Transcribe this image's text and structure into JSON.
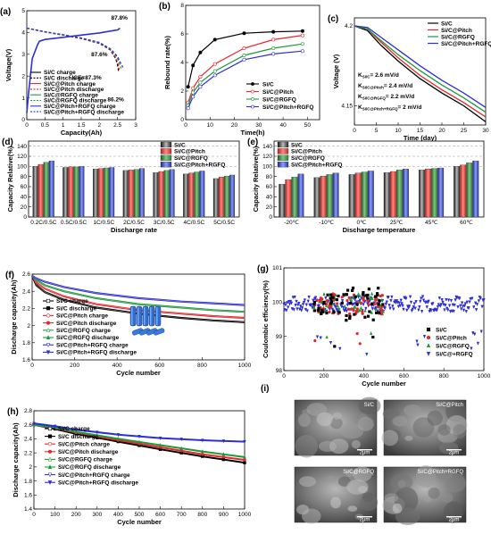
{
  "colors": {
    "SiC": "#000000",
    "Pitch": "#e8252a",
    "RGFQ": "#1e9a3a",
    "PitchRGFQ": "#2d2fd6"
  },
  "chart_data": [
    {
      "id": "a",
      "panel_label": "(a)",
      "type": "line",
      "xlabel": "Capacity(Ah)",
      "ylabel": "Voltage(V)",
      "xlim": [
        0,
        3
      ],
      "ylim": [
        0,
        5
      ],
      "xticks": [
        0,
        0.5,
        1,
        1.5,
        2,
        2.5,
        3
      ],
      "yticks": [
        0,
        1,
        2,
        3,
        4,
        5
      ],
      "annotations": [
        {
          "text": "87.8%",
          "x": 2.55,
          "y": 4.6
        },
        {
          "text": "87.6%",
          "x": 2.0,
          "y": 2.9
        },
        {
          "text": "ICE=87.3%",
          "x": 1.65,
          "y": 1.85
        },
        {
          "text": "86.2%",
          "x": 2.45,
          "y": 0.85
        }
      ],
      "legend": [
        "Si/C charge",
        "Si/C discharge",
        "Si/C@Pitch charge",
        "Si/C@Pitch discharge",
        "Si/C@RGFQ charge",
        "Si/C@RGFQ discharge",
        "Si/C@Pitch+RGFQ charge",
        "Si/C@Pitch+RGFQ discharge"
      ],
      "series": [
        {
          "key": "PitchRGFQ",
          "name": "Si/C@Pitch+RGFQ charge",
          "x": [
            0,
            0.05,
            0.15,
            0.3,
            0.35,
            0.5,
            1.0,
            1.5,
            2.0,
            2.5,
            2.57
          ],
          "y": [
            0.3,
            1.2,
            2.8,
            3.45,
            3.6,
            3.68,
            3.78,
            3.88,
            3.98,
            4.12,
            4.2
          ]
        },
        {
          "key": "SiC",
          "name": "Si/C discharge",
          "x": [
            0,
            0.5,
            1.0,
            1.5,
            2.0,
            2.3,
            2.45,
            2.5,
            2.53
          ],
          "y": [
            4.2,
            4.02,
            3.88,
            3.72,
            3.5,
            3.2,
            2.8,
            2.5,
            2.2
          ]
        },
        {
          "key": "Pitch",
          "name": "Si/C@Pitch discharge",
          "x": [
            0,
            0.5,
            1.0,
            1.5,
            2.0,
            2.3,
            2.45,
            2.52,
            2.55
          ],
          "y": [
            4.2,
            4.03,
            3.89,
            3.73,
            3.52,
            3.22,
            2.85,
            2.55,
            2.3
          ]
        },
        {
          "key": "RGFQ",
          "name": "Si/C@RGFQ discharge",
          "x": [
            0,
            0.5,
            1.0,
            1.5,
            2.0,
            2.3,
            2.48,
            2.55,
            2.6
          ],
          "y": [
            4.2,
            4.03,
            3.89,
            3.74,
            3.53,
            3.24,
            2.88,
            2.6,
            2.35
          ]
        },
        {
          "key": "PitchRGFQ",
          "name": "Si/C@Pitch+RGFQ discharge",
          "x": [
            0,
            0.5,
            1.0,
            1.5,
            2.0,
            2.3,
            2.5,
            2.58,
            2.65
          ],
          "y": [
            4.2,
            4.04,
            3.9,
            3.75,
            3.55,
            3.26,
            2.9,
            2.62,
            2.4
          ]
        }
      ]
    },
    {
      "id": "b",
      "panel_label": "(b)",
      "type": "line",
      "xlabel": "Time(h)",
      "ylabel": "Rebound rate(%)",
      "xlim": [
        0,
        55
      ],
      "ylim": [
        0,
        8
      ],
      "xticks": [
        0,
        10,
        20,
        30,
        40,
        50
      ],
      "yticks": [
        0,
        2,
        4,
        6,
        8
      ],
      "legend_position": "bottom-right",
      "series": [
        {
          "key": "SiC",
          "name": "Si/C",
          "x": [
            1,
            3,
            6,
            12,
            24,
            36,
            48
          ],
          "y": [
            2.3,
            3.8,
            4.7,
            5.6,
            6.05,
            6.15,
            6.2
          ]
        },
        {
          "key": "Pitch",
          "name": "Si/C@Pitch",
          "x": [
            1,
            3,
            6,
            12,
            24,
            36,
            48
          ],
          "y": [
            1.2,
            2.2,
            3.0,
            3.9,
            5.0,
            5.6,
            5.9
          ]
        },
        {
          "key": "RGFQ",
          "name": "Si/C@RGFQ",
          "x": [
            1,
            3,
            6,
            12,
            24,
            36,
            48
          ],
          "y": [
            1.0,
            1.9,
            2.6,
            3.4,
            4.5,
            5.0,
            5.3
          ]
        },
        {
          "key": "PitchRGFQ",
          "name": "Si/C@Pitch+RGFQ",
          "x": [
            1,
            3,
            6,
            12,
            24,
            36,
            48
          ],
          "y": [
            0.8,
            1.6,
            2.3,
            3.1,
            4.2,
            4.6,
            4.8
          ]
        }
      ]
    },
    {
      "id": "c",
      "panel_label": "(c)",
      "type": "line",
      "xlabel": "Time (day)",
      "ylabel": "Voltage (V)",
      "xlim": [
        0,
        30
      ],
      "ylim": [
        4.138,
        4.205
      ],
      "xticks": [
        0,
        5,
        10,
        15,
        20,
        25,
        30
      ],
      "yticks": [
        4.15,
        4.2
      ],
      "legend_position": "top-right",
      "k_labels": [
        {
          "label": "K",
          "sub": "Si/C",
          "value": "= 2.6 mV/d"
        },
        {
          "label": "K",
          "sub": "Si/C@Pitch",
          "value": "= 2.4 mV/d"
        },
        {
          "label": "K",
          "sub": "Si/C@RGFQ",
          "value": "= 2.2 mV/d"
        },
        {
          "label": "K",
          "sub": "Si/C@Pitch+RGFQ",
          "value": "= 2 mV/d"
        }
      ],
      "series": [
        {
          "key": "SiC",
          "name": "Si/C",
          "x": [
            0,
            3,
            6,
            10,
            15,
            20,
            25,
            30
          ],
          "y": [
            4.2,
            4.197,
            4.188,
            4.178,
            4.167,
            4.158,
            4.15,
            4.14
          ]
        },
        {
          "key": "Pitch",
          "name": "Si/C@Pitch",
          "x": [
            0,
            3,
            6,
            10,
            15,
            20,
            25,
            30
          ],
          "y": [
            4.2,
            4.198,
            4.19,
            4.18,
            4.169,
            4.16,
            4.152,
            4.143
          ]
        },
        {
          "key": "RGFQ",
          "name": "Si/C@RGFQ",
          "x": [
            0,
            3,
            6,
            10,
            15,
            20,
            25,
            30
          ],
          "y": [
            4.2,
            4.198,
            4.191,
            4.182,
            4.172,
            4.163,
            4.155,
            4.146
          ]
        },
        {
          "key": "PitchRGFQ",
          "name": "Si/C@Pitch+RGFQ",
          "x": [
            0,
            3,
            6,
            10,
            15,
            20,
            25,
            30
          ],
          "y": [
            4.2,
            4.199,
            4.193,
            4.185,
            4.175,
            4.166,
            4.158,
            4.149
          ]
        }
      ]
    },
    {
      "id": "d",
      "panel_label": "(d)",
      "type": "bar",
      "xlabel": "Discharge rate",
      "ylabel": "Capacity Relative(%)",
      "ylim": [
        0,
        150
      ],
      "yticks": [
        0,
        20,
        40,
        60,
        80,
        100,
        120,
        140
      ],
      "categories": [
        "0.2C/0.5C",
        "0.5C/0.5C",
        "1C/0.5C",
        "2C/0.5C",
        "3C/0.5C",
        "4C/0.5C",
        "5C/0.5C"
      ],
      "legend_position": "top-right",
      "series": [
        {
          "key": "SiC",
          "name": "Si/C",
          "values": [
            100,
            98,
            95,
            92,
            88,
            85,
            76
          ]
        },
        {
          "key": "Pitch",
          "name": "Si/C@Pitch",
          "values": [
            104,
            99,
            96,
            93,
            90,
            87,
            79
          ]
        },
        {
          "key": "RGFQ",
          "name": "Si/C@RGFQ",
          "values": [
            108,
            99,
            97,
            94,
            92,
            89,
            81
          ]
        },
        {
          "key": "PitchRGFQ",
          "name": "Si/C@Pitch+RGFQ",
          "values": [
            111,
            100,
            98,
            96,
            94,
            91,
            83
          ]
        }
      ]
    },
    {
      "id": "e",
      "panel_label": "(e)",
      "type": "bar",
      "xlabel": "Discharge temperature",
      "ylabel": "Capacity Relative(%)",
      "ylim": [
        0,
        150
      ],
      "yticks": [
        0,
        20,
        40,
        60,
        80,
        100,
        120,
        140
      ],
      "categories": [
        "-20℃",
        "-10℃",
        "0℃",
        "25℃",
        "45℃",
        "60℃"
      ],
      "legend_position": "top-left",
      "series": [
        {
          "key": "SiC",
          "name": "Si/C",
          "values": [
            65,
            78,
            84,
            88,
            93,
            100
          ]
        },
        {
          "key": "Pitch",
          "name": "Si/C@Pitch",
          "values": [
            74,
            81,
            87,
            90,
            95,
            103
          ]
        },
        {
          "key": "RGFQ",
          "name": "Si/C@RGFQ",
          "values": [
            79,
            84,
            89,
            93,
            96,
            107
          ]
        },
        {
          "key": "PitchRGFQ",
          "name": "Si/C@Pitch+RGFQ",
          "values": [
            85,
            87,
            91,
            95,
            97,
            111
          ]
        }
      ]
    },
    {
      "id": "f",
      "panel_label": "(f)",
      "type": "line",
      "xlabel": "Cycle number",
      "ylabel": "Discharge capacity(Ah)",
      "xlim": [
        0,
        1000
      ],
      "ylim": [
        1.6,
        2.6
      ],
      "xticks": [
        0,
        200,
        400,
        600,
        800,
        1000
      ],
      "yticks": [
        1.6,
        1.8,
        2.0,
        2.2,
        2.4,
        2.6
      ],
      "legend": [
        "Si/C charge",
        "Si/C discharge",
        "Si/C@Pitch charge",
        "Si/C@Pitch discharge",
        "Si/C@RGFQ charge",
        "Si/C@RGFQ discharge",
        "Si/C@Pitch+RGFQ charge",
        "Si/C@Pitch+RGFQ discharge"
      ],
      "series": [
        {
          "key": "SiC",
          "name": "Si/C",
          "x": [
            0,
            20,
            60,
            150,
            300,
            500,
            700,
            850,
            1000
          ],
          "y": [
            2.58,
            2.47,
            2.39,
            2.3,
            2.21,
            2.14,
            2.09,
            2.06,
            2.04
          ]
        },
        {
          "key": "Pitch",
          "name": "Si/C@Pitch",
          "x": [
            0,
            20,
            60,
            150,
            300,
            500,
            700,
            850,
            1000
          ],
          "y": [
            2.58,
            2.5,
            2.43,
            2.34,
            2.25,
            2.18,
            2.14,
            2.11,
            2.09
          ]
        },
        {
          "key": "RGFQ",
          "name": "Si/C@RGFQ",
          "x": [
            0,
            20,
            60,
            150,
            300,
            500,
            700,
            850,
            1000
          ],
          "y": [
            2.58,
            2.53,
            2.47,
            2.4,
            2.32,
            2.25,
            2.21,
            2.18,
            2.16
          ]
        },
        {
          "key": "PitchRGFQ",
          "name": "Si/C@Pitch+RGFQ",
          "x": [
            0,
            20,
            60,
            150,
            300,
            500,
            700,
            850,
            1000
          ],
          "y": [
            2.58,
            2.55,
            2.51,
            2.45,
            2.38,
            2.32,
            2.28,
            2.26,
            2.24
          ]
        }
      ]
    },
    {
      "id": "g",
      "panel_label": "(g)",
      "type": "scatter",
      "xlabel": "Cycle number",
      "ylabel": "Coulombic efficiency(%)",
      "xlim": [
        0,
        1000
      ],
      "ylim": [
        98,
        101
      ],
      "xticks": [
        0,
        200,
        400,
        600,
        800,
        1000
      ],
      "yticks": [
        98,
        99,
        100,
        101
      ],
      "legend_position": "bottom-right",
      "series": [
        {
          "key": "SiC",
          "name": "Si/C",
          "marker": "square",
          "mean": 99.95
        },
        {
          "key": "Pitch",
          "name": "Si/C@Pitch",
          "marker": "circle",
          "mean": 99.95
        },
        {
          "key": "RGFQ",
          "name": "Si/C@RGFQ",
          "marker": "triangle-up",
          "mean": 99.95
        },
        {
          "key": "PitchRGFQ",
          "name": "Si/C@+RGFQ",
          "marker": "triangle-down",
          "mean": 99.95
        }
      ]
    },
    {
      "id": "h",
      "panel_label": "(h)",
      "type": "line",
      "xlabel": "Cycle number",
      "ylabel": "Discharge capacity(Ah)",
      "xlim": [
        0,
        1000
      ],
      "ylim": [
        1.4,
        2.8
      ],
      "xticks": [
        0,
        100,
        200,
        300,
        400,
        500,
        600,
        700,
        800,
        900,
        1000
      ],
      "yticks": [
        1.4,
        1.6,
        1.8,
        2.0,
        2.2,
        2.4,
        2.6,
        2.8
      ],
      "legend": [
        "Si/C charge",
        "Si/C discharge",
        "Si/C@Pitch charge",
        "Si/C@Pitch discharge",
        "Si/C@RGFQ charge",
        "Si/C@RGFQ discharge",
        "Si/C@Pitch+RGFQ charge",
        "Si/C@Pitch+RGFQ discharge"
      ],
      "series": [
        {
          "key": "SiC",
          "name": "Si/C",
          "x": [
            0,
            100,
            200,
            400,
            600,
            800,
            1000
          ],
          "y": [
            2.6,
            2.54,
            2.47,
            2.36,
            2.25,
            2.15,
            2.06
          ]
        },
        {
          "key": "Pitch",
          "name": "Si/C@Pitch",
          "x": [
            0,
            100,
            200,
            400,
            600,
            800,
            1000
          ],
          "y": [
            2.6,
            2.55,
            2.49,
            2.38,
            2.28,
            2.18,
            2.1
          ]
        },
        {
          "key": "RGFQ",
          "name": "Si/C@RGFQ",
          "x": [
            0,
            100,
            200,
            400,
            600,
            800,
            1000
          ],
          "y": [
            2.6,
            2.56,
            2.5,
            2.4,
            2.31,
            2.22,
            2.14
          ]
        },
        {
          "key": "PitchRGFQ",
          "name": "Si/C@Pitch+RGFQ",
          "x": [
            0,
            100,
            200,
            400,
            600,
            800,
            1000
          ],
          "y": [
            2.62,
            2.58,
            2.53,
            2.46,
            2.41,
            2.38,
            2.36
          ]
        }
      ]
    }
  ],
  "sem_panel": {
    "panel_label": "(i)",
    "images": [
      {
        "label": "Si/C",
        "scale": "2μm"
      },
      {
        "label": "Si/C@Pitch",
        "scale": "2μm"
      },
      {
        "label": "Si/C@RGFQ",
        "scale": "2μm"
      },
      {
        "label": "Si/C@Pitch+RGFQ",
        "scale": "2μm"
      }
    ]
  }
}
